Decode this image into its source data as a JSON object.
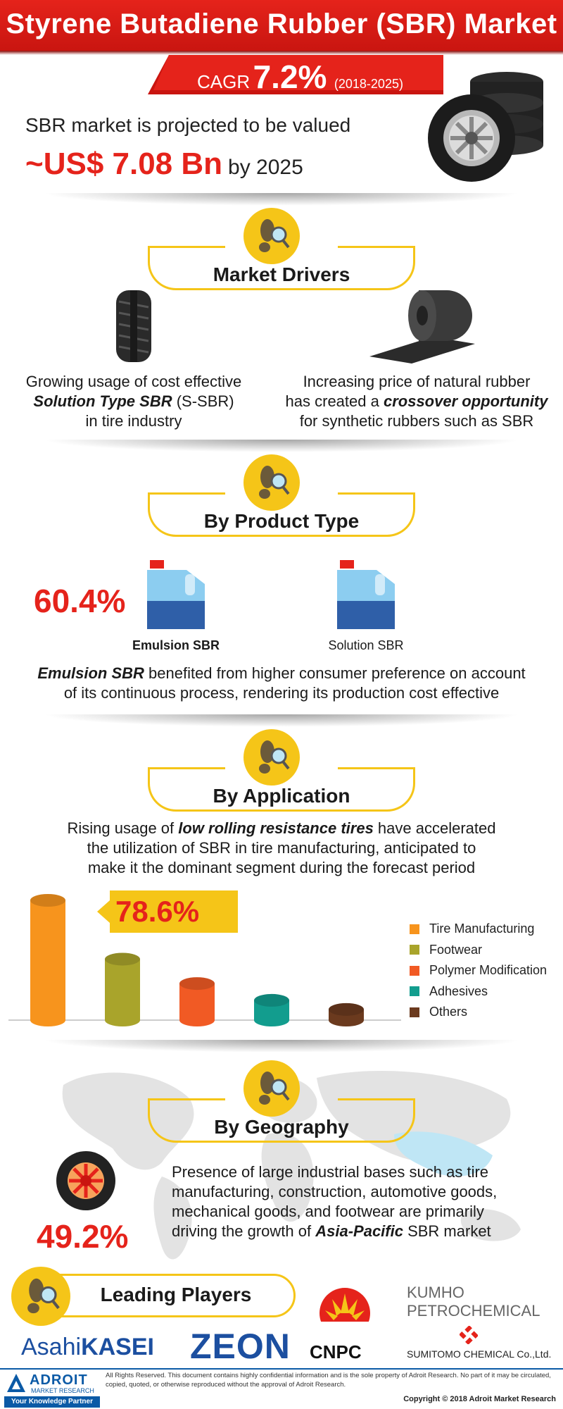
{
  "header": {
    "title": "Styrene Butadiene Rubber (SBR) Market"
  },
  "cagr": {
    "label": "CAGR",
    "value": "7.2%",
    "years": "(2018-2025)"
  },
  "projection": {
    "line1": "SBR market is projected to be valued",
    "value": "~US$ 7.08 Bn",
    "suffix": "by 2025"
  },
  "market_drivers": {
    "title": "Market Drivers",
    "left": {
      "pre": "Growing usage of cost effective",
      "bold": "Solution Type SBR",
      "mid": " (S-SBR)",
      "post": "in tire industry"
    },
    "right": {
      "pre": "Increasing price of natural rubber",
      "pre2": "has created a ",
      "bold": "crossover opportunity",
      "post": "for synthetic rubbers such as SBR"
    }
  },
  "product_type": {
    "title": "By Product Type",
    "share": "60.4%",
    "items": [
      {
        "label": "Emulsion SBR"
      },
      {
        "label": "Solution SBR"
      }
    ],
    "desc_bold": "Emulsion SBR",
    "desc_rest": " benefited from higher consumer preference on account",
    "desc_line2": "of its continuous process, rendering its production cost effective"
  },
  "application": {
    "title": "By Application",
    "desc_pre": "Rising usage of ",
    "desc_bold": "low rolling resistance tires",
    "desc_rest": " have accelerated",
    "desc_line2": "the utilization of SBR in tire manufacturing, anticipated to",
    "desc_line3": "make it the dominant segment during the forecast period",
    "callout": "78.6%"
  },
  "chart_data": {
    "type": "bar",
    "categories": [
      "Tire Manufacturing",
      "Footwear",
      "Polymer Modification",
      "Adhesives",
      "Others"
    ],
    "values": [
      78.6,
      40,
      24,
      13,
      7
    ],
    "colors": [
      "#f7941d",
      "#a9a42b",
      "#f15a24",
      "#129d8e",
      "#6b3a1e"
    ],
    "legend": "right"
  },
  "geography": {
    "title": "By Geography",
    "share": "49.2%",
    "desc_line1": "Presence of large industrial bases such as tire",
    "desc_line2": "manufacturing, construction, automotive goods,",
    "desc_line3": "mechanical goods, and footwear are primarily",
    "desc_pre4": "driving the growth of ",
    "desc_bold4": "Asia-Pacific",
    "desc_rest4": " SBR market"
  },
  "players": {
    "title": "Leading Players",
    "asahi_a": "Asahi",
    "asahi_b": "KASEI",
    "zeon": "ZEON",
    "cnpc": "CNPC",
    "kumho1": "KUMHO",
    "kumho2": "PETROCHEMICAL",
    "sumitomo": "SUMITOMO CHEMICAL Co.,Ltd."
  },
  "footer": {
    "brand1": "ADROIT",
    "brand2": "MARKET RESEARCH",
    "tagline": "Your Knowledge Partner",
    "notice": "All Rights Reserved. This document contains highly confidential information and is the sole property of Adroit Research. No part of it may be circulated, copied, quoted, or otherwise reproduced without the approval of Adroit Research.",
    "copyright": "Copyright © 2018 Adroit Market Research"
  },
  "colors": {
    "accent": "#e5231b",
    "section": "#f5c518"
  }
}
